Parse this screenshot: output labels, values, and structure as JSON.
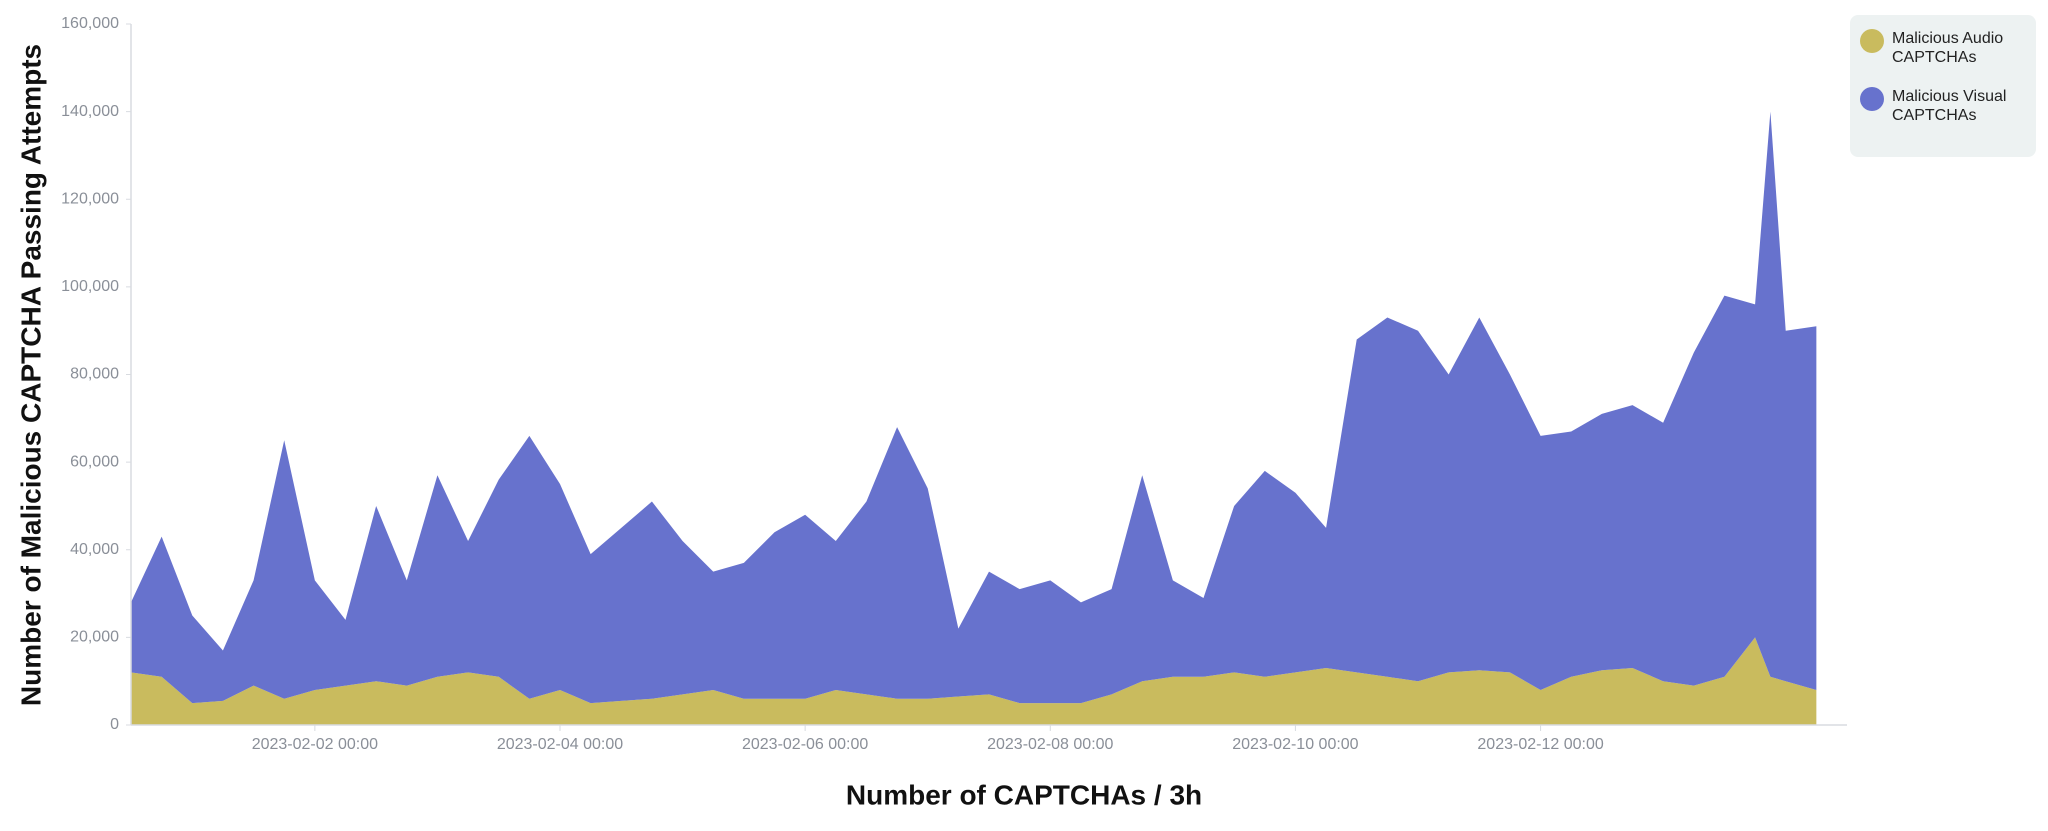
{
  "chart_data": {
    "type": "stacked_area",
    "x_label": "Number of CAPTCHAs / 3h",
    "y_label": "Number of Malicious CAPTCHA Passing Attempts",
    "x": [
      "2023-01-31 12:00",
      "2023-01-31 18:00",
      "2023-02-01 00:00",
      "2023-02-01 06:00",
      "2023-02-01 12:00",
      "2023-02-01 18:00",
      "2023-02-02 00:00",
      "2023-02-02 06:00",
      "2023-02-02 12:00",
      "2023-02-02 18:00",
      "2023-02-03 00:00",
      "2023-02-03 06:00",
      "2023-02-03 12:00",
      "2023-02-03 18:00",
      "2023-02-04 00:00",
      "2023-02-04 06:00",
      "2023-02-04 12:00",
      "2023-02-04 18:00",
      "2023-02-05 00:00",
      "2023-02-05 06:00",
      "2023-02-05 12:00",
      "2023-02-05 18:00",
      "2023-02-06 00:00",
      "2023-02-06 06:00",
      "2023-02-06 12:00",
      "2023-02-06 18:00",
      "2023-02-07 00:00",
      "2023-02-07 06:00",
      "2023-02-07 12:00",
      "2023-02-07 18:00",
      "2023-02-08 00:00",
      "2023-02-08 06:00",
      "2023-02-08 12:00",
      "2023-02-08 18:00",
      "2023-02-09 00:00",
      "2023-02-09 06:00",
      "2023-02-09 12:00",
      "2023-02-09 18:00",
      "2023-02-10 00:00",
      "2023-02-10 06:00",
      "2023-02-10 12:00",
      "2023-02-10 18:00",
      "2023-02-11 00:00",
      "2023-02-11 06:00",
      "2023-02-11 12:00",
      "2023-02-11 18:00",
      "2023-02-12 00:00",
      "2023-02-12 06:00",
      "2023-02-12 12:00",
      "2023-02-12 18:00",
      "2023-02-13 00:00",
      "2023-02-13 06:00",
      "2023-02-13 12:00",
      "2023-02-13 18:00",
      "2023-02-13 21:00",
      "2023-02-14 00:00",
      "2023-02-14 06:00"
    ],
    "series": [
      {
        "name": "Malicious Audio CAPTCHAs",
        "color": "#c9bb5e",
        "values": [
          12000,
          11000,
          5000,
          5500,
          9000,
          6000,
          8000,
          9000,
          10000,
          9000,
          11000,
          12000,
          11000,
          6000,
          8000,
          5000,
          5500,
          6000,
          7000,
          8000,
          6000,
          6000,
          6000,
          8000,
          7000,
          6000,
          6000,
          6500,
          7000,
          5000,
          5000,
          5000,
          7000,
          10000,
          11000,
          11000,
          12000,
          11000,
          12000,
          13000,
          12000,
          11000,
          10000,
          12000,
          12500,
          12000,
          8000,
          11000,
          12500,
          13000,
          10000,
          9000,
          11000,
          20000,
          11000,
          10000,
          8000
        ]
      },
      {
        "name": "Malicious Visual CAPTCHAs",
        "color": "#6772cd",
        "values": [
          16000,
          32000,
          20000,
          11500,
          24000,
          59000,
          25000,
          15000,
          40000,
          24000,
          46000,
          30000,
          45000,
          60000,
          47000,
          34000,
          39500,
          45000,
          35000,
          27000,
          31000,
          38000,
          42000,
          34000,
          44000,
          62000,
          48000,
          15500,
          28000,
          26000,
          28000,
          23000,
          24000,
          47000,
          22000,
          18000,
          38000,
          47000,
          41000,
          32000,
          76000,
          82000,
          80000,
          68000,
          80500,
          68000,
          58000,
          56000,
          58500,
          60000,
          59000,
          76000,
          87000,
          76000,
          129000,
          80000,
          83000
        ]
      }
    ],
    "xlim": [
      "2023-01-31 12:00",
      "2023-02-14 12:00"
    ],
    "xticks": [
      "2023-02-02 00:00",
      "2023-02-04 00:00",
      "2023-02-06 00:00",
      "2023-02-08 00:00",
      "2023-02-10 00:00",
      "2023-02-12 00:00"
    ],
    "ylim": [
      0,
      160000
    ],
    "yticks": [
      0,
      {
        "value": 20000,
        "label": "20,000"
      },
      {
        "value": 40000,
        "label": "40,000"
      },
      {
        "value": 60000,
        "label": "60,000"
      },
      {
        "value": 80000,
        "label": "80,000"
      },
      {
        "value": 100000,
        "label": "100,000"
      },
      {
        "value": 120000,
        "label": "120,000"
      },
      {
        "value": 140000,
        "label": "140,000"
      },
      {
        "value": 160000,
        "label": "160,000"
      }
    ],
    "grid": false,
    "legend": "top-right"
  }
}
